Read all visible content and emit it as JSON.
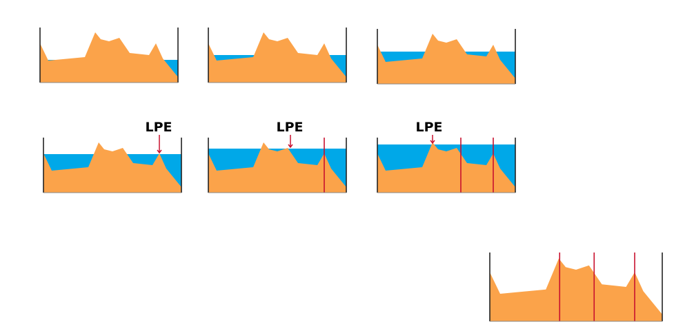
{
  "labels": [
    "LPE",
    "LPE",
    "LPE"
  ]
}
